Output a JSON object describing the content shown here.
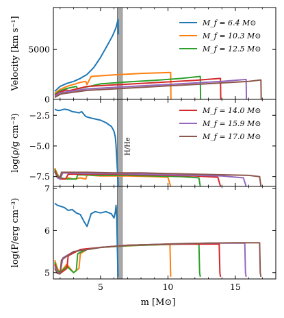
{
  "chart_data": {
    "type": "line",
    "xlabel": "m [M⊙]",
    "xlim": [
      1.5,
      18.0
    ],
    "x_ticks": [
      "5",
      "10",
      "15"
    ],
    "colors": {
      "M6.4": "#1f77b4",
      "M10.3": "#ff7f0e",
      "M12.5": "#2ca02c",
      "M14.0": "#d62728",
      "M15.9": "#9467bd",
      "M17.0": "#8c564b"
    },
    "legend_top": [
      {
        "key": "M6.4",
        "label": "M_f = 6.4 M⊙"
      },
      {
        "key": "M10.3",
        "label": "M_f = 10.3 M⊙"
      },
      {
        "key": "M12.5",
        "label": "M_f = 12.5 M⊙"
      }
    ],
    "legend_middle": [
      {
        "key": "M14.0",
        "label": "M_f = 14.0 M⊙"
      },
      {
        "key": "M15.9",
        "label": "M_f = 15.9 M⊙"
      },
      {
        "key": "M17.0",
        "label": "M_f = 17.0 M⊙"
      }
    ],
    "legend_placement": "top-right",
    "annotation": {
      "text": "H/He",
      "x_range": [
        6.25,
        6.6
      ]
    },
    "panels": [
      {
        "id": "velocity",
        "ylabel": "Velocity [km s⁻¹]",
        "ylim": [
          0,
          9200
        ],
        "y_ticks": [
          0,
          5000
        ],
        "series": [
          {
            "key": "M6.4",
            "x": [
              1.6,
              2.0,
              2.5,
              3.0,
              3.5,
              4.0,
              4.5,
              5.0,
              5.5,
              5.9,
              6.15,
              6.3,
              6.33
            ],
            "y": [
              800,
              1300,
              1600,
              1800,
              2100,
              2500,
              3200,
              4200,
              5400,
              6400,
              7200,
              8000,
              6500
            ]
          },
          {
            "key": "M10.3",
            "x": [
              1.6,
              2.0,
              2.5,
              3.0,
              3.5,
              3.9,
              4.0,
              4.3,
              6.0,
              8.0,
              10.2,
              10.22
            ],
            "y": [
              600,
              1000,
              1300,
              1500,
              1700,
              1800,
              1500,
              2300,
              2450,
              2600,
              2700,
              0
            ]
          },
          {
            "key": "M12.5",
            "x": [
              1.6,
              2.0,
              2.5,
              3.2,
              3.3,
              5.0,
              7.0,
              9.0,
              11.0,
              12.4,
              12.42
            ],
            "y": [
              500,
              850,
              1100,
              1300,
              1050,
              1550,
              1750,
              1900,
              2100,
              2300,
              0
            ]
          },
          {
            "key": "M14.0",
            "x": [
              1.6,
              2.0,
              2.5,
              2.6,
              4.0,
              6.0,
              8.0,
              10.0,
              12.0,
              13.9,
              13.92
            ],
            "y": [
              400,
              750,
              950,
              850,
              1300,
              1450,
              1600,
              1750,
              1900,
              2100,
              0
            ]
          },
          {
            "key": "M15.9",
            "x": [
              1.6,
              2.0,
              2.2,
              4.0,
              6.0,
              8.0,
              10.0,
              12.0,
              14.0,
              15.8,
              15.82
            ],
            "y": [
              300,
              650,
              700,
              1050,
              1200,
              1350,
              1500,
              1650,
              1800,
              2000,
              0
            ]
          },
          {
            "key": "M17.0",
            "x": [
              1.6,
              2.0,
              2.1,
              4.0,
              6.0,
              8.0,
              10.0,
              12.0,
              14.0,
              16.0,
              16.9,
              16.92
            ],
            "y": [
              200,
              500,
              550,
              900,
              1050,
              1200,
              1350,
              1500,
              1650,
              1800,
              1950,
              0
            ]
          }
        ]
      },
      {
        "id": "density",
        "ylabel": "log(ρ/g cm⁻³)",
        "ylim": [
          -8.3,
          -1.2
        ],
        "y_ticks": [
          -2.5,
          -5.0,
          -7.5
        ],
        "series": [
          {
            "key": "M6.4",
            "x": [
              1.6,
              1.8,
              2.0,
              2.3,
              2.6,
              2.9,
              3.2,
              3.4,
              3.6,
              3.9,
              4.2,
              4.6,
              5.0,
              5.4,
              5.8,
              6.0,
              6.1,
              6.15,
              6.2,
              6.25,
              6.28,
              6.3
            ],
            "y": [
              -2.0,
              -2.1,
              -2.1,
              -2.0,
              -2.05,
              -2.2,
              -2.25,
              -2.3,
              -2.2,
              -2.6,
              -2.7,
              -2.8,
              -2.9,
              -3.1,
              -3.4,
              -3.8,
              -4.3,
              -5.0,
              -6.0,
              -7.0,
              -7.6,
              -8.3
            ]
          },
          {
            "key": "M10.3",
            "x": [
              1.6,
              1.8,
              2.0,
              2.3,
              2.6,
              3.0,
              3.5,
              3.9,
              4.0,
              4.3,
              5.0,
              7.0,
              9.0,
              10.0,
              10.2
            ],
            "y": [
              -6.8,
              -7.3,
              -7.6,
              -7.7,
              -7.6,
              -7.7,
              -7.6,
              -7.7,
              -7.35,
              -7.4,
              -7.45,
              -7.45,
              -7.5,
              -7.55,
              -8.3
            ]
          },
          {
            "key": "M12.5",
            "x": [
              1.6,
              1.8,
              2.0,
              2.5,
              3.0,
              3.2,
              3.3,
              5.0,
              7.0,
              9.0,
              11.0,
              12.3,
              12.4
            ],
            "y": [
              -6.9,
              -7.4,
              -7.6,
              -7.7,
              -7.7,
              -7.7,
              -7.35,
              -7.4,
              -7.4,
              -7.45,
              -7.5,
              -7.6,
              -8.3
            ]
          },
          {
            "key": "M14.0",
            "x": [
              1.6,
              1.8,
              2.0,
              2.4,
              2.6,
              4.0,
              6.0,
              8.0,
              10.0,
              12.0,
              13.7,
              13.9
            ],
            "y": [
              -7.0,
              -7.5,
              -7.7,
              -7.7,
              -7.3,
              -7.3,
              -7.3,
              -7.35,
              -7.4,
              -7.45,
              -7.55,
              -8.3
            ]
          },
          {
            "key": "M15.9",
            "x": [
              1.6,
              1.8,
              2.0,
              2.2,
              4.0,
              6.0,
              8.0,
              10.0,
              12.0,
              14.0,
              15.6,
              15.8
            ],
            "y": [
              -7.1,
              -7.6,
              -7.7,
              -7.2,
              -7.25,
              -7.25,
              -7.3,
              -7.35,
              -7.4,
              -7.45,
              -7.6,
              -8.3
            ]
          },
          {
            "key": "M17.0",
            "x": [
              1.6,
              1.8,
              2.0,
              2.1,
              4.0,
              6.0,
              8.0,
              10.0,
              12.0,
              14.0,
              16.0,
              16.8,
              16.9
            ],
            "y": [
              -7.1,
              -7.5,
              -7.6,
              -7.15,
              -7.15,
              -7.2,
              -7.2,
              -7.25,
              -7.3,
              -7.35,
              -7.4,
              -7.5,
              -8.3
            ]
          }
        ]
      },
      {
        "id": "pressure",
        "ylabel": "log(P/erg cm⁻³)",
        "ylim": [
          4.85,
          7.05
        ],
        "y_ticks": [
          5,
          6,
          7
        ],
        "series": [
          {
            "key": "M6.4",
            "x": [
              1.6,
              1.8,
              2.0,
              2.3,
              2.6,
              2.9,
              3.2,
              3.5,
              3.8,
              4.0,
              4.1,
              4.3,
              4.6,
              5.0,
              5.4,
              5.8,
              6.0,
              6.1,
              6.15,
              6.2,
              6.25,
              6.3
            ],
            "y": [
              6.65,
              6.6,
              6.58,
              6.55,
              6.48,
              6.5,
              6.42,
              6.38,
              6.2,
              6.1,
              6.2,
              6.4,
              6.45,
              6.42,
              6.45,
              6.4,
              6.3,
              6.45,
              6.6,
              6.3,
              5.5,
              4.9
            ]
          },
          {
            "key": "M10.3",
            "x": [
              1.6,
              1.8,
              2.0,
              2.5,
              3.0,
              3.4,
              3.5,
              4.0,
              5.0,
              6.0,
              8.0,
              10.0,
              10.15,
              10.2
            ],
            "y": [
              5.3,
              5.1,
              5.0,
              5.2,
              5.0,
              5.1,
              5.45,
              5.55,
              5.6,
              5.62,
              5.65,
              5.67,
              5.67,
              4.9
            ]
          },
          {
            "key": "M12.5",
            "x": [
              1.6,
              1.8,
              2.0,
              2.5,
              3.0,
              3.2,
              3.3,
              4.0,
              5.0,
              7.0,
              9.0,
              11.0,
              12.3,
              12.35,
              12.4
            ],
            "y": [
              5.25,
              5.05,
              5.0,
              5.15,
              5.0,
              5.05,
              5.45,
              5.55,
              5.6,
              5.64,
              5.66,
              5.68,
              5.68,
              5.0,
              4.9
            ]
          },
          {
            "key": "M14.0",
            "x": [
              1.6,
              1.8,
              2.0,
              2.5,
              2.6,
              3.5,
              5.0,
              7.0,
              9.0,
              11.0,
              13.0,
              13.8,
              13.85,
              13.9
            ],
            "y": [
              5.2,
              5.0,
              4.98,
              5.1,
              5.4,
              5.55,
              5.6,
              5.65,
              5.67,
              5.68,
              5.68,
              5.68,
              5.0,
              4.9
            ]
          },
          {
            "key": "M15.9",
            "x": [
              1.6,
              1.8,
              2.0,
              2.2,
              3.0,
              5.0,
              7.0,
              9.0,
              11.0,
              13.0,
              15.0,
              15.7,
              15.75,
              15.8
            ],
            "y": [
              5.15,
              5.0,
              4.98,
              5.35,
              5.5,
              5.6,
              5.65,
              5.67,
              5.69,
              5.7,
              5.7,
              5.7,
              5.0,
              4.9
            ]
          },
          {
            "key": "M17.0",
            "x": [
              1.6,
              1.8,
              2.0,
              2.1,
              3.0,
              5.0,
              7.0,
              9.0,
              11.0,
              13.0,
              15.0,
              16.8,
              16.85,
              16.9
            ],
            "y": [
              5.1,
              4.98,
              4.97,
              5.3,
              5.5,
              5.6,
              5.65,
              5.67,
              5.69,
              5.7,
              5.71,
              5.71,
              5.0,
              4.9
            ]
          }
        ]
      }
    ]
  }
}
